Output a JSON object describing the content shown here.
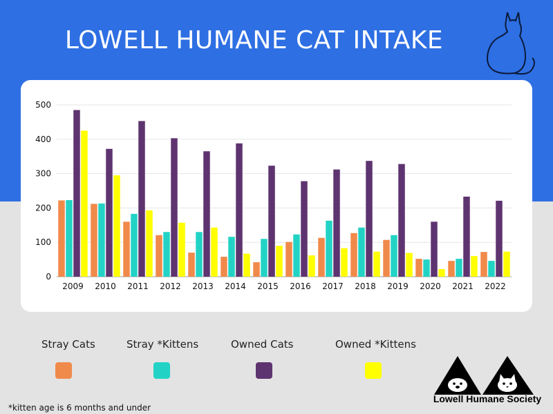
{
  "header": {
    "title": "LOWELL HUMANE CAT INTAKE"
  },
  "chart_data": {
    "type": "bar",
    "title": "LOWELL HUMANE CAT INTAKE",
    "xlabel": "",
    "ylabel": "",
    "ylim": [
      0,
      500
    ],
    "yticks": [
      0,
      100,
      200,
      300,
      400,
      500
    ],
    "grid": true,
    "legend_position": "bottom",
    "categories": [
      "2009",
      "2010",
      "2011",
      "2012",
      "2013",
      "2014",
      "2015",
      "2016",
      "2017",
      "2018",
      "2019",
      "2020",
      "2021",
      "2022"
    ],
    "series": [
      {
        "name": "Stray Cats",
        "color": "#f08a4b",
        "values": [
          222,
          212,
          160,
          121,
          70,
          58,
          42,
          101,
          113,
          127,
          107,
          52,
          46,
          72
        ]
      },
      {
        "name": "Stray *Kittens",
        "color": "#22d3c5",
        "values": [
          223,
          213,
          183,
          130,
          130,
          116,
          110,
          123,
          163,
          143,
          121,
          50,
          52,
          46
        ]
      },
      {
        "name": "Owned Cats",
        "color": "#5e3470",
        "values": [
          485,
          372,
          453,
          403,
          365,
          388,
          323,
          278,
          312,
          337,
          328,
          160,
          233,
          221
        ]
      },
      {
        "name": "Owned *Kittens",
        "color": "#ffff00",
        "values": [
          425,
          295,
          193,
          157,
          143,
          67,
          90,
          62,
          83,
          73,
          69,
          22,
          60,
          73
        ]
      }
    ]
  },
  "footer": {
    "footnote": "*kitten age is 6 months and under",
    "org_name": "Lowell Humane Society"
  }
}
